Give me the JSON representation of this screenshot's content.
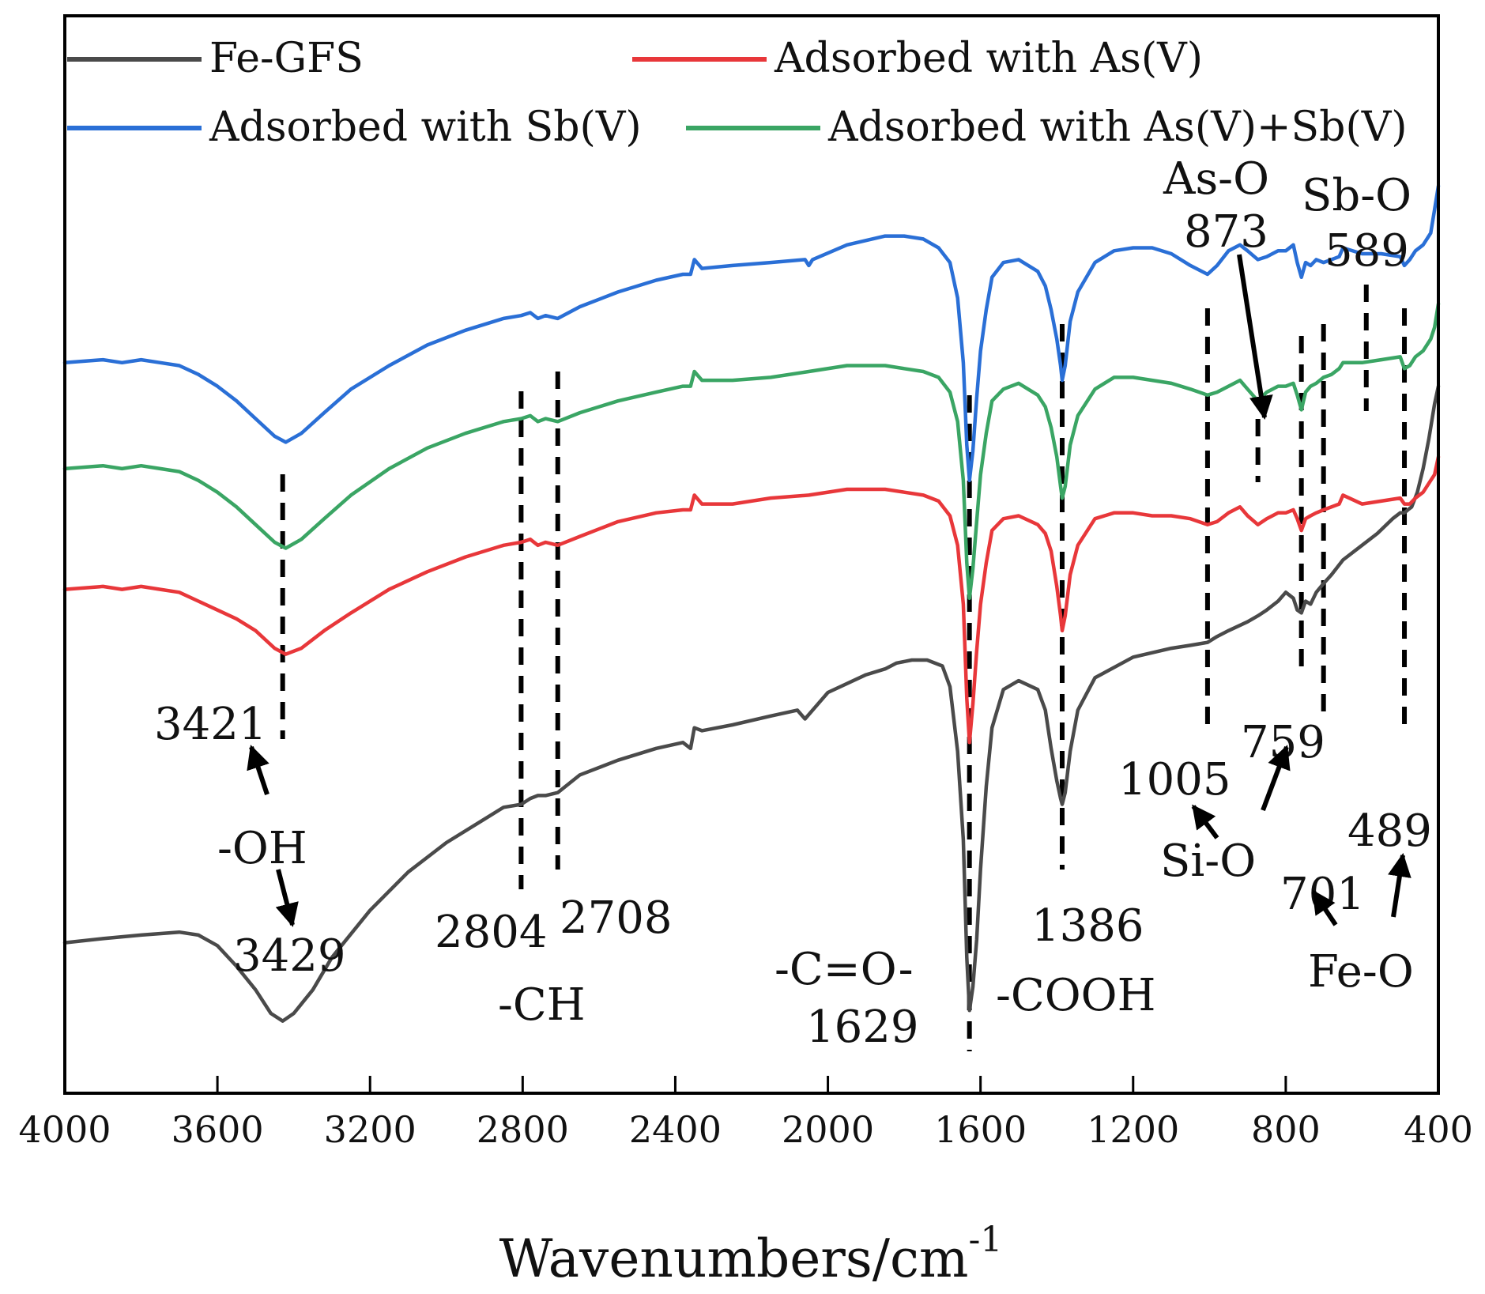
{
  "chart_data": {
    "type": "line",
    "title": "",
    "xlabel": "Wavenumbers/cm",
    "xlabel_sup": "-1",
    "ylabel": "",
    "x_reversed": true,
    "xlim": [
      4000,
      400
    ],
    "ylim": [
      0,
      14
    ],
    "y_ticks_shown": false,
    "x_ticks": [
      "4000",
      "3600",
      "3200",
      "2800",
      "2400",
      "2000",
      "1600",
      "1200",
      "800",
      "400"
    ],
    "legend": {
      "placement": "top",
      "columns": 2
    },
    "series": [
      {
        "name": "Fe-GFS",
        "color": "#4a4a4a",
        "x": [
          4000,
          3900,
          3800,
          3700,
          3650,
          3600,
          3550,
          3500,
          3460,
          3429,
          3400,
          3350,
          3300,
          3200,
          3100,
          3000,
          2900,
          2850,
          2804,
          2780,
          2760,
          2740,
          2708,
          2650,
          2550,
          2450,
          2380,
          2360,
          2350,
          2330,
          2250,
          2150,
          2080,
          2060,
          2000,
          1900,
          1850,
          1820,
          1780,
          1740,
          1700,
          1680,
          1660,
          1645,
          1636,
          1629,
          1620,
          1610,
          1600,
          1585,
          1570,
          1540,
          1500,
          1450,
          1430,
          1415,
          1400,
          1390,
          1386,
          1378,
          1365,
          1345,
          1300,
          1200,
          1100,
          1050,
          1005,
          980,
          950,
          900,
          873,
          850,
          820,
          800,
          780,
          770,
          759,
          748,
          735,
          720,
          701,
          680,
          650,
          600,
          560,
          520,
          500,
          489,
          480,
          470,
          455,
          440,
          425,
          410,
          400
        ],
        "values": [
          1.75,
          1.82,
          1.88,
          1.93,
          1.88,
          1.7,
          1.35,
          0.95,
          0.55,
          0.42,
          0.55,
          0.95,
          1.5,
          2.3,
          2.95,
          3.45,
          3.85,
          4.05,
          4.1,
          4.2,
          4.25,
          4.25,
          4.3,
          4.6,
          4.85,
          5.05,
          5.15,
          5.05,
          5.4,
          5.35,
          5.45,
          5.6,
          5.7,
          5.55,
          6.0,
          6.3,
          6.4,
          6.5,
          6.55,
          6.55,
          6.45,
          6.1,
          5.0,
          3.5,
          1.5,
          0.6,
          1.0,
          1.8,
          3.0,
          4.4,
          5.4,
          6.05,
          6.2,
          6.05,
          5.7,
          5.05,
          4.5,
          4.2,
          4.1,
          4.3,
          5.0,
          5.7,
          6.25,
          6.6,
          6.75,
          6.8,
          6.85,
          6.95,
          7.05,
          7.2,
          7.3,
          7.4,
          7.55,
          7.7,
          7.6,
          7.4,
          7.35,
          7.55,
          7.5,
          7.7,
          7.85,
          8.0,
          8.25,
          8.5,
          8.7,
          8.95,
          9.05,
          9.05,
          9.1,
          9.15,
          9.4,
          9.8,
          10.3,
          10.9,
          11.2
        ]
      },
      {
        "name": "Adsorbed with As(V)",
        "color": "#e8373a",
        "x": [
          4000,
          3900,
          3850,
          3800,
          3750,
          3700,
          3650,
          3600,
          3550,
          3500,
          3450,
          3421,
          3380,
          3320,
          3250,
          3150,
          3050,
          2950,
          2850,
          2804,
          2780,
          2760,
          2740,
          2708,
          2650,
          2550,
          2450,
          2380,
          2360,
          2350,
          2330,
          2250,
          2150,
          2050,
          1950,
          1850,
          1800,
          1750,
          1710,
          1680,
          1660,
          1645,
          1636,
          1629,
          1620,
          1610,
          1600,
          1585,
          1570,
          1540,
          1500,
          1450,
          1430,
          1415,
          1400,
          1390,
          1386,
          1378,
          1365,
          1345,
          1300,
          1250,
          1200,
          1150,
          1100,
          1050,
          1005,
          980,
          950,
          920,
          900,
          873,
          850,
          820,
          800,
          780,
          770,
          759,
          748,
          735,
          720,
          701,
          680,
          660,
          650,
          600,
          550,
          500,
          489,
          475,
          460,
          440,
          420,
          410,
          400
        ],
        "values": [
          7.75,
          7.8,
          7.75,
          7.8,
          7.75,
          7.7,
          7.55,
          7.4,
          7.25,
          7.05,
          6.75,
          6.65,
          6.75,
          7.05,
          7.35,
          7.75,
          8.05,
          8.3,
          8.5,
          8.55,
          8.6,
          8.5,
          8.55,
          8.5,
          8.65,
          8.9,
          9.05,
          9.1,
          9.1,
          9.35,
          9.2,
          9.2,
          9.3,
          9.35,
          9.45,
          9.45,
          9.4,
          9.35,
          9.25,
          9.0,
          8.5,
          7.5,
          5.9,
          5.15,
          5.8,
          6.7,
          7.5,
          8.2,
          8.75,
          8.95,
          9.0,
          8.85,
          8.7,
          8.4,
          7.8,
          7.3,
          7.05,
          7.3,
          8.0,
          8.5,
          8.95,
          9.05,
          9.05,
          9.0,
          9.0,
          8.95,
          8.85,
          8.9,
          9.05,
          9.15,
          9.0,
          8.85,
          8.95,
          9.05,
          9.05,
          9.1,
          8.95,
          8.75,
          8.95,
          9.0,
          9.05,
          9.1,
          9.15,
          9.2,
          9.35,
          9.2,
          9.25,
          9.3,
          9.2,
          9.2,
          9.3,
          9.4,
          9.6,
          9.7,
          10.0
        ]
      },
      {
        "name": "Adsorbed with As(V)+Sb(V)",
        "color": "#3aa564",
        "x": [
          4000,
          3900,
          3850,
          3800,
          3750,
          3700,
          3650,
          3600,
          3550,
          3500,
          3450,
          3421,
          3380,
          3320,
          3250,
          3150,
          3050,
          2950,
          2850,
          2804,
          2780,
          2760,
          2740,
          2708,
          2650,
          2550,
          2450,
          2380,
          2360,
          2350,
          2330,
          2250,
          2150,
          2050,
          1950,
          1850,
          1800,
          1750,
          1710,
          1680,
          1660,
          1645,
          1636,
          1629,
          1620,
          1610,
          1600,
          1585,
          1570,
          1540,
          1500,
          1450,
          1430,
          1415,
          1400,
          1390,
          1386,
          1378,
          1365,
          1345,
          1300,
          1250,
          1200,
          1150,
          1100,
          1050,
          1005,
          980,
          950,
          920,
          900,
          873,
          850,
          820,
          800,
          780,
          770,
          759,
          748,
          735,
          720,
          701,
          680,
          660,
          650,
          600,
          550,
          500,
          489,
          475,
          460,
          440,
          420,
          410,
          400
        ],
        "values": [
          9.8,
          9.85,
          9.8,
          9.85,
          9.8,
          9.75,
          9.6,
          9.4,
          9.15,
          8.85,
          8.55,
          8.45,
          8.6,
          8.95,
          9.35,
          9.8,
          10.15,
          10.4,
          10.6,
          10.65,
          10.7,
          10.6,
          10.65,
          10.6,
          10.75,
          10.95,
          11.1,
          11.2,
          11.2,
          11.45,
          11.3,
          11.3,
          11.35,
          11.45,
          11.55,
          11.55,
          11.5,
          11.45,
          11.35,
          11.1,
          10.6,
          9.6,
          8.2,
          7.6,
          8.1,
          8.9,
          9.7,
          10.4,
          10.95,
          11.15,
          11.25,
          11.05,
          10.85,
          10.5,
          10.0,
          9.5,
          9.3,
          9.5,
          10.2,
          10.7,
          11.15,
          11.35,
          11.35,
          11.3,
          11.25,
          11.15,
          11.05,
          11.1,
          11.2,
          11.3,
          11.15,
          10.95,
          11.1,
          11.2,
          11.2,
          11.25,
          11.05,
          10.8,
          11.1,
          11.2,
          11.25,
          11.35,
          11.4,
          11.5,
          11.6,
          11.6,
          11.65,
          11.7,
          11.5,
          11.55,
          11.7,
          11.8,
          12.0,
          12.2,
          12.6
        ]
      },
      {
        "name": "Adsorbed with Sb(V)",
        "color": "#2a6fd6",
        "x": [
          4000,
          3900,
          3850,
          3800,
          3750,
          3700,
          3650,
          3600,
          3550,
          3500,
          3450,
          3421,
          3380,
          3320,
          3250,
          3150,
          3050,
          2950,
          2850,
          2804,
          2780,
          2760,
          2740,
          2708,
          2650,
          2550,
          2450,
          2380,
          2360,
          2350,
          2330,
          2250,
          2150,
          2060,
          2050,
          2040,
          1950,
          1850,
          1800,
          1750,
          1710,
          1680,
          1660,
          1645,
          1636,
          1629,
          1620,
          1610,
          1600,
          1585,
          1570,
          1540,
          1500,
          1450,
          1430,
          1415,
          1400,
          1390,
          1386,
          1378,
          1365,
          1345,
          1300,
          1250,
          1200,
          1150,
          1100,
          1050,
          1005,
          980,
          950,
          920,
          900,
          873,
          850,
          820,
          800,
          780,
          770,
          759,
          748,
          735,
          720,
          701,
          680,
          660,
          650,
          600,
          550,
          500,
          489,
          475,
          460,
          440,
          420,
          410,
          400
        ],
        "values": [
          11.6,
          11.65,
          11.6,
          11.65,
          11.6,
          11.55,
          11.4,
          11.2,
          10.95,
          10.65,
          10.35,
          10.25,
          10.4,
          10.75,
          11.15,
          11.55,
          11.9,
          12.15,
          12.35,
          12.4,
          12.45,
          12.35,
          12.4,
          12.35,
          12.55,
          12.8,
          13.0,
          13.1,
          13.1,
          13.35,
          13.2,
          13.25,
          13.3,
          13.35,
          13.25,
          13.35,
          13.6,
          13.75,
          13.75,
          13.7,
          13.55,
          13.3,
          12.7,
          11.6,
          10.2,
          9.6,
          10.1,
          11.0,
          11.8,
          12.5,
          13.05,
          13.3,
          13.35,
          13.15,
          12.9,
          12.5,
          12.0,
          11.55,
          11.3,
          11.55,
          12.3,
          12.8,
          13.3,
          13.5,
          13.55,
          13.55,
          13.45,
          13.25,
          13.1,
          13.25,
          13.5,
          13.6,
          13.5,
          13.35,
          13.4,
          13.5,
          13.5,
          13.6,
          13.3,
          13.05,
          13.3,
          13.25,
          13.35,
          13.3,
          13.35,
          13.4,
          13.55,
          13.45,
          13.45,
          13.4,
          13.25,
          13.35,
          13.5,
          13.6,
          13.8,
          14.2,
          14.6
        ]
      }
    ],
    "reference_lines": [
      3429,
      2804,
      2708,
      1629,
      1386,
      1005,
      873,
      759,
      701,
      589,
      489
    ],
    "annotations": [
      {
        "key": "a3421",
        "text": "3421"
      },
      {
        "key": "aOH",
        "text": "-OH"
      },
      {
        "key": "a3429",
        "text": "3429"
      },
      {
        "key": "a2804",
        "text": "2804"
      },
      {
        "key": "a2708",
        "text": "2708"
      },
      {
        "key": "aCH",
        "text": "-CH"
      },
      {
        "key": "aCO",
        "text": "-C=O-"
      },
      {
        "key": "a1629",
        "text": "1629"
      },
      {
        "key": "a1386",
        "text": "1386"
      },
      {
        "key": "aCOOH",
        "text": "-COOH"
      },
      {
        "key": "a1005",
        "text": "1005"
      },
      {
        "key": "a759",
        "text": "759"
      },
      {
        "key": "aSiO",
        "text": "Si-O"
      },
      {
        "key": "a701",
        "text": "701"
      },
      {
        "key": "a489",
        "text": "489"
      },
      {
        "key": "aFeO",
        "text": "Fe-O"
      },
      {
        "key": "aAsO",
        "text": "As-O"
      },
      {
        "key": "a873",
        "text": "873"
      },
      {
        "key": "aSbO",
        "text": "Sb-O"
      },
      {
        "key": "a589",
        "text": "589"
      }
    ]
  }
}
